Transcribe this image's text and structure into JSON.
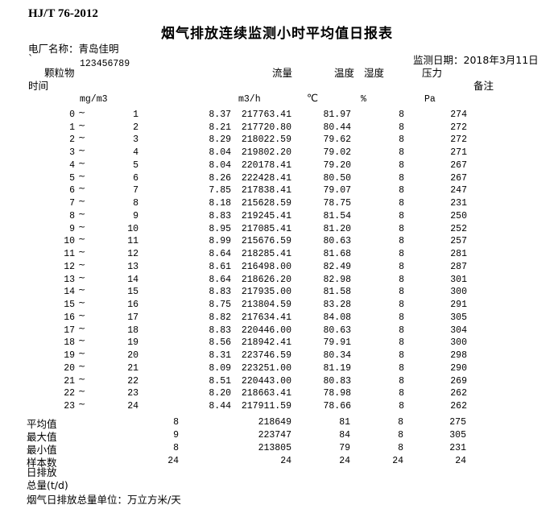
{
  "doc": {
    "standard_code": "HJ/T 76-2012",
    "title": "烟气排放连续监测小时平均值日报表",
    "plant_label": "电厂名称：",
    "plant_name": "青岛佳明",
    "plant_code_prefix": "`",
    "plant_code": "123456789",
    "date_label": "监测日期：",
    "date_value": "2018年3月11日"
  },
  "table": {
    "headers": {
      "particulate": "颗粒物",
      "time": "时间",
      "flow": "流量",
      "temperature": "温度",
      "humidity": "湿度",
      "pressure": "压力",
      "remark": "备注"
    },
    "units": {
      "particulate": "mg/m3",
      "flow": "m3/h",
      "temperature": "℃",
      "humidity": "%",
      "pressure": "Pa"
    },
    "tilde": "~",
    "rows": [
      {
        "from": "0",
        "to": "1",
        "pm": "8.37",
        "flow": "217763.41",
        "temp": "81.97",
        "hum": "8",
        "pres": "274"
      },
      {
        "from": "1",
        "to": "2",
        "pm": "8.21",
        "flow": "217720.80",
        "temp": "80.44",
        "hum": "8",
        "pres": "272"
      },
      {
        "from": "2",
        "to": "3",
        "pm": "8.29",
        "flow": "218022.59",
        "temp": "79.62",
        "hum": "8",
        "pres": "272"
      },
      {
        "from": "3",
        "to": "4",
        "pm": "8.04",
        "flow": "219802.20",
        "temp": "79.02",
        "hum": "8",
        "pres": "271"
      },
      {
        "from": "4",
        "to": "5",
        "pm": "8.04",
        "flow": "220178.41",
        "temp": "79.20",
        "hum": "8",
        "pres": "267"
      },
      {
        "from": "5",
        "to": "6",
        "pm": "8.26",
        "flow": "222428.41",
        "temp": "80.50",
        "hum": "8",
        "pres": "267"
      },
      {
        "from": "6",
        "to": "7",
        "pm": "7.85",
        "flow": "217838.41",
        "temp": "79.07",
        "hum": "8",
        "pres": "247"
      },
      {
        "from": "7",
        "to": "8",
        "pm": "8.18",
        "flow": "215628.59",
        "temp": "78.75",
        "hum": "8",
        "pres": "231"
      },
      {
        "from": "8",
        "to": "9",
        "pm": "8.83",
        "flow": "219245.41",
        "temp": "81.54",
        "hum": "8",
        "pres": "250"
      },
      {
        "from": "9",
        "to": "10",
        "pm": "8.95",
        "flow": "217085.41",
        "temp": "81.20",
        "hum": "8",
        "pres": "252"
      },
      {
        "from": "10",
        "to": "11",
        "pm": "8.99",
        "flow": "215676.59",
        "temp": "80.63",
        "hum": "8",
        "pres": "257"
      },
      {
        "from": "11",
        "to": "12",
        "pm": "8.64",
        "flow": "218285.41",
        "temp": "81.68",
        "hum": "8",
        "pres": "281"
      },
      {
        "from": "12",
        "to": "13",
        "pm": "8.61",
        "flow": "216498.00",
        "temp": "82.49",
        "hum": "8",
        "pres": "287"
      },
      {
        "from": "13",
        "to": "14",
        "pm": "8.64",
        "flow": "218626.20",
        "temp": "82.98",
        "hum": "8",
        "pres": "301"
      },
      {
        "from": "14",
        "to": "15",
        "pm": "8.83",
        "flow": "217935.00",
        "temp": "81.58",
        "hum": "8",
        "pres": "300"
      },
      {
        "from": "15",
        "to": "16",
        "pm": "8.75",
        "flow": "213804.59",
        "temp": "83.28",
        "hum": "8",
        "pres": "291"
      },
      {
        "from": "16",
        "to": "17",
        "pm": "8.82",
        "flow": "217634.41",
        "temp": "84.08",
        "hum": "8",
        "pres": "305"
      },
      {
        "from": "17",
        "to": "18",
        "pm": "8.83",
        "flow": "220446.00",
        "temp": "80.63",
        "hum": "8",
        "pres": "304"
      },
      {
        "from": "18",
        "to": "19",
        "pm": "8.56",
        "flow": "218942.41",
        "temp": "79.91",
        "hum": "8",
        "pres": "300"
      },
      {
        "from": "19",
        "to": "20",
        "pm": "8.31",
        "flow": "223746.59",
        "temp": "80.34",
        "hum": "8",
        "pres": "298"
      },
      {
        "from": "20",
        "to": "21",
        "pm": "8.09",
        "flow": "223251.00",
        "temp": "81.19",
        "hum": "8",
        "pres": "290"
      },
      {
        "from": "21",
        "to": "22",
        "pm": "8.51",
        "flow": "220443.00",
        "temp": "80.83",
        "hum": "8",
        "pres": "269"
      },
      {
        "from": "22",
        "to": "23",
        "pm": "8.20",
        "flow": "218663.41",
        "temp": "78.98",
        "hum": "8",
        "pres": "262"
      },
      {
        "from": "23",
        "to": "24",
        "pm": "8.44",
        "flow": "217911.59",
        "temp": "78.66",
        "hum": "8",
        "pres": "262"
      }
    ],
    "summary": [
      {
        "label": "平均值",
        "pm": "8",
        "flow": "218649",
        "temp": "81",
        "hum": "8",
        "pres": "275"
      },
      {
        "label": "最大值",
        "pm": "9",
        "flow": "223747",
        "temp": "84",
        "hum": "8",
        "pres": "305"
      },
      {
        "label": "最小值",
        "pm": "8",
        "flow": "213805",
        "temp": "79",
        "hum": "8",
        "pres": "231"
      },
      {
        "label": "样本数",
        "pm": "24",
        "flow": "24",
        "temp": "24",
        "hum": "24",
        "pres": "24"
      }
    ],
    "daily_emission_line1": "日排放",
    "daily_emission_line2": "总量(t/d)",
    "unit_note": "烟气日排放总量单位：万立方米/天"
  }
}
